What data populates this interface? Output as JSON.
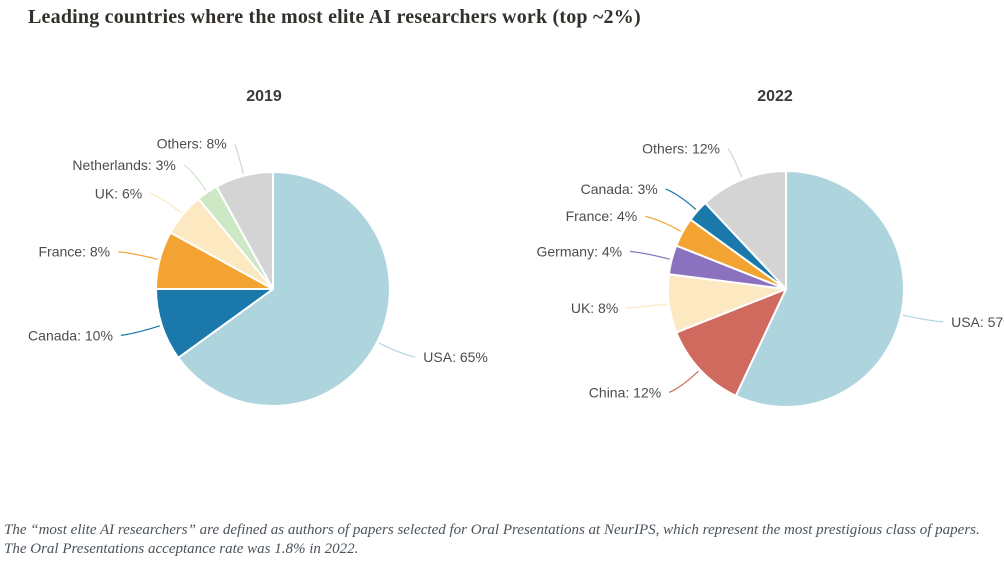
{
  "page": {
    "title": "Leading countries where the most elite AI researchers work (top ~2%)",
    "footnote": "The “most elite AI researchers” are defined as authors of papers selected for Oral Presentations at NeurIPS, which represent the most prestigious class of papers. The Oral Presentations acceptance rate was 1.8% in 2022."
  },
  "chart_data": [
    {
      "type": "pie",
      "title": "2019",
      "unit": "%",
      "start_angle_deg": 0,
      "direction": "clockwise",
      "legend_position": "outside-labels",
      "slices": [
        {
          "label": "USA",
          "value": 65,
          "color": "#aed5de"
        },
        {
          "label": "Canada",
          "value": 10,
          "color": "#1a78ab"
        },
        {
          "label": "France",
          "value": 8,
          "color": "#f3a332"
        },
        {
          "label": "UK",
          "value": 6,
          "color": "#fce9c2"
        },
        {
          "label": "Netherlands",
          "value": 3,
          "color": "#cde8c5"
        },
        {
          "label": "Others",
          "value": 8,
          "color": "#d4d4d4"
        }
      ]
    },
    {
      "type": "pie",
      "title": "2022",
      "unit": "%",
      "start_angle_deg": 0,
      "direction": "clockwise",
      "legend_position": "outside-labels",
      "slices": [
        {
          "label": "USA",
          "value": 57,
          "color": "#aed5de"
        },
        {
          "label": "China",
          "value": 12,
          "color": "#d06a5f"
        },
        {
          "label": "UK",
          "value": 8,
          "color": "#fce9c2"
        },
        {
          "label": "Germany",
          "value": 4,
          "color": "#8b72be"
        },
        {
          "label": "France",
          "value": 4,
          "color": "#f3a332"
        },
        {
          "label": "Canada",
          "value": 3,
          "color": "#1a78ab"
        },
        {
          "label": "Others",
          "value": 12,
          "color": "#d4d4d4"
        }
      ]
    }
  ]
}
